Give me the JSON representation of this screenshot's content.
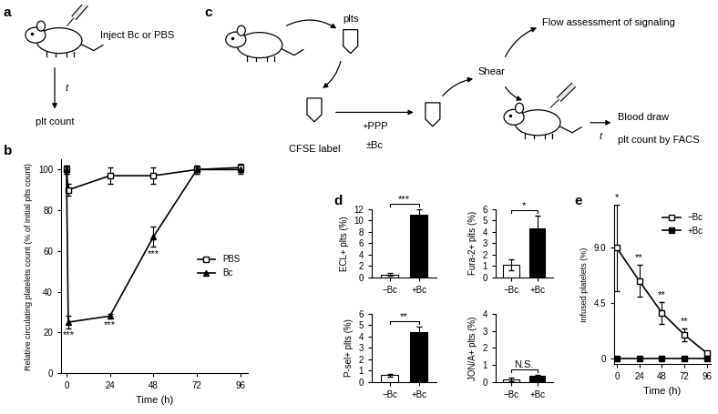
{
  "chart_data": [
    {
      "panel": "b",
      "type": "line",
      "x_label": "Time (h)",
      "y_label": "Relative circulating platelets count (% of initial plts count)",
      "xlim": [
        -3,
        100
      ],
      "xticks": [
        0,
        24,
        48,
        72,
        96
      ],
      "ylim": [
        0,
        105
      ],
      "yticks": [
        0,
        20,
        40,
        60,
        80,
        100
      ],
      "legend": "center right",
      "series": [
        {
          "name": "PBS",
          "color": "#000000",
          "marker": "open square",
          "x": [
            0,
            1,
            24,
            48,
            72,
            96
          ],
          "values": [
            100,
            90,
            97,
            97,
            100,
            101
          ],
          "errors": [
            2,
            3,
            4,
            4,
            2,
            2
          ]
        },
        {
          "name": "Bc",
          "color": "#000000",
          "marker": "filled triangle",
          "x": [
            0,
            1,
            24,
            48,
            72,
            96
          ],
          "values": [
            100,
            25,
            28,
            67,
            100,
            100
          ],
          "errors": [
            2,
            3,
            1,
            5,
            2,
            2
          ]
        }
      ],
      "annotations": [
        {
          "x": 1,
          "text": "***",
          "series": "Bc"
        },
        {
          "x": 24,
          "text": "***",
          "series": "Bc"
        },
        {
          "x": 48,
          "text": "***",
          "series": "Bc"
        }
      ]
    },
    {
      "panel": "d",
      "type": "bar",
      "y_label": "ECL+ plts (%)",
      "categories": [
        "−Bc",
        "+Bc"
      ],
      "values": [
        0.5,
        11
      ],
      "errors": [
        0.2,
        0.9
      ],
      "colors": [
        "#ffffff",
        "#000000"
      ],
      "ylim": [
        0,
        12
      ],
      "yticks": [
        0,
        2,
        4,
        6,
        8,
        10,
        12
      ],
      "significance": "***"
    },
    {
      "type": "bar",
      "y_label": "Fura-2+ plts (%)",
      "categories": [
        "−Bc",
        "+Bc"
      ],
      "values": [
        1.1,
        4.3
      ],
      "errors": [
        0.5,
        1.1
      ],
      "colors": [
        "#ffffff",
        "#000000"
      ],
      "ylim": [
        0,
        6
      ],
      "yticks": [
        0,
        1,
        2,
        3,
        4,
        5,
        6
      ],
      "significance": "*"
    },
    {
      "type": "bar",
      "y_label": "P-sel+ plts (%)",
      "categories": [
        "−Bc",
        "+Bc"
      ],
      "values": [
        0.6,
        4.4
      ],
      "errors": [
        0.1,
        0.5
      ],
      "colors": [
        "#ffffff",
        "#000000"
      ],
      "ylim": [
        0,
        6
      ],
      "yticks": [
        0,
        1,
        2,
        3,
        4,
        5,
        6
      ],
      "significance": "**"
    },
    {
      "type": "bar",
      "y_label": "JON/A+ plts (%)",
      "categories": [
        "−Bc",
        "+Bc"
      ],
      "values": [
        0.15,
        0.35
      ],
      "errors": [
        0.1,
        0.1
      ],
      "colors": [
        "#ffffff",
        "#000000"
      ],
      "ylim": [
        0,
        4
      ],
      "yticks": [
        0,
        1,
        2,
        3,
        4
      ],
      "significance": "N.S."
    },
    {
      "panel": "e",
      "type": "line",
      "x_label": "Time (h)",
      "y_label": "Infused platelets (%)",
      "xlim": [
        -3,
        100
      ],
      "xticks": [
        0,
        24,
        48,
        72,
        96
      ],
      "ylim": [
        -0.5,
        12.5
      ],
      "yticks": [
        0,
        4.5,
        {
          "value": 9,
          "label": "9.0"
        }
      ],
      "legend": "upper right",
      "series": [
        {
          "name": "−Bc",
          "color": "#000000",
          "marker": "open square",
          "x": [
            0,
            24,
            48,
            72,
            96
          ],
          "values": [
            9.0,
            6.3,
            3.7,
            1.9,
            0.4
          ],
          "errors": [
            3.5,
            1.3,
            0.9,
            0.5,
            0.2
          ]
        },
        {
          "name": "+Bc",
          "color": "#000000",
          "marker": "filled square",
          "x": [
            0,
            24,
            48,
            72,
            96
          ],
          "values": [
            0,
            0,
            0,
            0,
            0
          ],
          "errors": [
            0,
            0,
            0,
            0,
            0
          ]
        }
      ],
      "annotations": [
        {
          "x": 0,
          "text": "*",
          "series": "−Bc"
        },
        {
          "x": 24,
          "text": "**",
          "series": "−Bc"
        },
        {
          "x": 48,
          "text": "**",
          "series": "−Bc"
        },
        {
          "x": 72,
          "text": "**",
          "series": "−Bc"
        }
      ]
    }
  ],
  "diagrams": [
    {
      "panel": "a",
      "injection": "Inject Bc or PBS",
      "interval": "t",
      "readout": "plt count"
    },
    {
      "panel": "c",
      "source": "plts",
      "label_step": "CFSE label",
      "treatment": [
        "+PPP",
        "±Bc"
      ],
      "shear": "Shear",
      "signaling": "Flow assessment of signaling",
      "interval": "t",
      "readout": [
        "Blood draw",
        "plt count by FACS"
      ]
    }
  ]
}
